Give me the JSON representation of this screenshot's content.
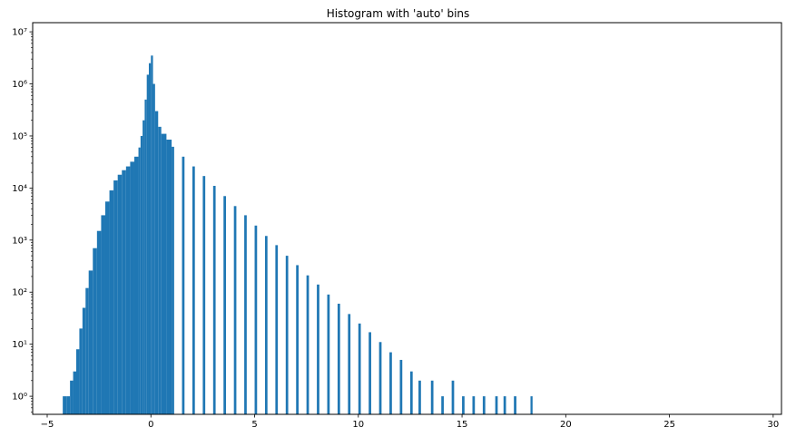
{
  "chart_data": {
    "type": "bar",
    "title": "Histogram with 'auto' bins",
    "xlabel": "",
    "ylabel": "",
    "y_scale": "log",
    "xlim": [
      -5.7,
      30.4
    ],
    "ylim": [
      0.45,
      15000000
    ],
    "x_ticks": [
      -5,
      0,
      5,
      10,
      15,
      20,
      25,
      30
    ],
    "y_ticks": [
      1,
      10,
      100,
      1000,
      10000,
      100000,
      1000000,
      10000000
    ],
    "y_tick_labels": [
      "10⁰",
      "10¹",
      "10²",
      "10³",
      "10⁴",
      "10⁵",
      "10⁶",
      "10⁷"
    ],
    "bar_color": "#1f77b4",
    "grid": false,
    "legend": "none",
    "bins": [
      {
        "x": -4.25,
        "count": 1
      },
      {
        "x": -4.05,
        "count": 1
      },
      {
        "x": -3.9,
        "count": 2
      },
      {
        "x": -3.75,
        "count": 3
      },
      {
        "x": -3.6,
        "count": 8
      },
      {
        "x": -3.45,
        "count": 20
      },
      {
        "x": -3.3,
        "count": 50
      },
      {
        "x": -3.15,
        "count": 120
      },
      {
        "x": -3.0,
        "count": 260
      },
      {
        "x": -2.8,
        "count": 700
      },
      {
        "x": -2.6,
        "count": 1500
      },
      {
        "x": -2.4,
        "count": 3000
      },
      {
        "x": -2.2,
        "count": 5500
      },
      {
        "x": -2.0,
        "count": 9000
      },
      {
        "x": -1.8,
        "count": 14000
      },
      {
        "x": -1.6,
        "count": 18000
      },
      {
        "x": -1.4,
        "count": 22000
      },
      {
        "x": -1.2,
        "count": 26000
      },
      {
        "x": -1.0,
        "count": 32000
      },
      {
        "x": -0.8,
        "count": 40000
      },
      {
        "x": -0.6,
        "count": 60000
      },
      {
        "x": -0.5,
        "count": 100000
      },
      {
        "x": -0.4,
        "count": 200000
      },
      {
        "x": -0.3,
        "count": 500000
      },
      {
        "x": -0.2,
        "count": 1500000
      },
      {
        "x": -0.1,
        "count": 2500000
      },
      {
        "x": 0.0,
        "count": 3500000
      },
      {
        "x": 0.1,
        "count": 1000000
      },
      {
        "x": 0.2,
        "count": 300000
      },
      {
        "x": 0.35,
        "count": 150000
      },
      {
        "x": 0.5,
        "count": 110000
      },
      {
        "x": 0.75,
        "count": 85000
      },
      {
        "x": 1.0,
        "count": 62000
      },
      {
        "x": 1.5,
        "count": 40000
      },
      {
        "x": 2.0,
        "count": 26000
      },
      {
        "x": 2.5,
        "count": 17000
      },
      {
        "x": 3.0,
        "count": 11000
      },
      {
        "x": 3.5,
        "count": 7000
      },
      {
        "x": 4.0,
        "count": 4500
      },
      {
        "x": 4.5,
        "count": 3000
      },
      {
        "x": 5.0,
        "count": 1900
      },
      {
        "x": 5.5,
        "count": 1200
      },
      {
        "x": 6.0,
        "count": 800
      },
      {
        "x": 6.5,
        "count": 500
      },
      {
        "x": 7.0,
        "count": 330
      },
      {
        "x": 7.5,
        "count": 210
      },
      {
        "x": 8.0,
        "count": 140
      },
      {
        "x": 8.5,
        "count": 90
      },
      {
        "x": 9.0,
        "count": 60
      },
      {
        "x": 9.5,
        "count": 38
      },
      {
        "x": 10.0,
        "count": 25
      },
      {
        "x": 10.5,
        "count": 17
      },
      {
        "x": 11.0,
        "count": 11
      },
      {
        "x": 11.5,
        "count": 7
      },
      {
        "x": 12.0,
        "count": 5
      },
      {
        "x": 12.5,
        "count": 3
      },
      {
        "x": 12.9,
        "count": 2
      },
      {
        "x": 13.5,
        "count": 2
      },
      {
        "x": 14.0,
        "count": 1
      },
      {
        "x": 14.5,
        "count": 2
      },
      {
        "x": 15.0,
        "count": 1
      },
      {
        "x": 15.5,
        "count": 1
      },
      {
        "x": 16.0,
        "count": 1
      },
      {
        "x": 16.6,
        "count": 1
      },
      {
        "x": 17.0,
        "count": 1
      },
      {
        "x": 17.5,
        "count": 1
      },
      {
        "x": 18.3,
        "count": 1
      }
    ]
  }
}
